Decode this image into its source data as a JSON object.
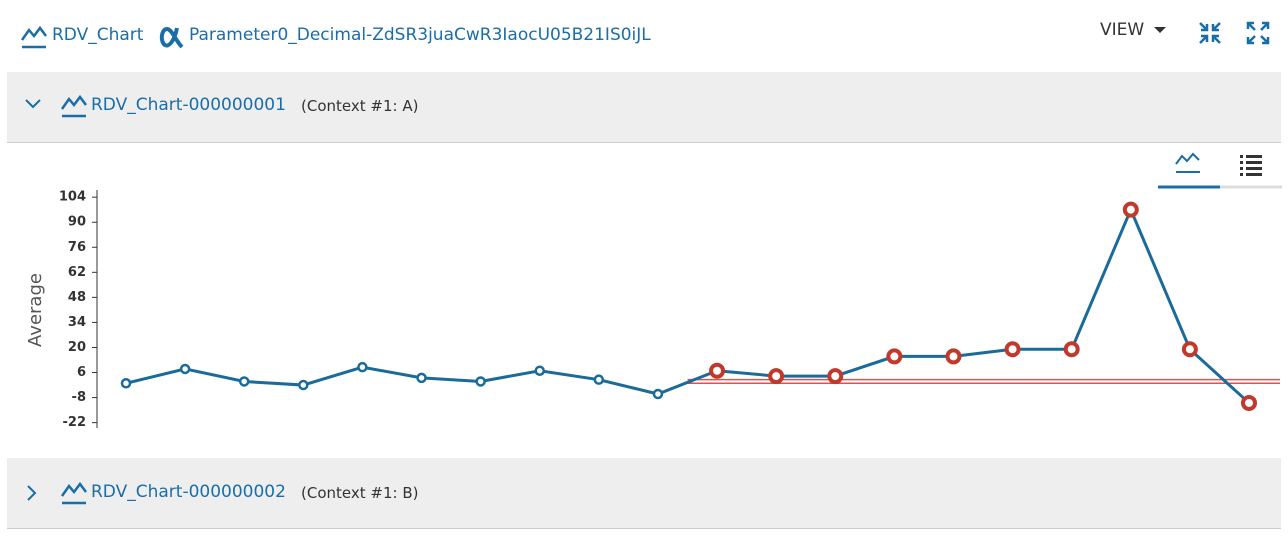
{
  "header": {
    "chart_link": "RDV_Chart",
    "parameter_link": "Parameter0_Decimal-ZdSR3juaCwR3IaocU05B21IS0iJL",
    "view_menu": "VIEW"
  },
  "panels": [
    {
      "title": "RDV_Chart-000000001",
      "context": "(Context #1: A)",
      "expanded": true
    },
    {
      "title": "RDV_Chart-000000002",
      "context": "(Context #1: B)",
      "expanded": false
    }
  ],
  "chart_data": {
    "type": "line",
    "y_label": "Average",
    "categories": [
      null,
      null,
      null,
      null,
      null,
      null,
      null,
      null,
      null,
      null,
      null,
      null,
      null,
      null,
      null,
      null,
      null,
      null,
      null,
      null
    ],
    "series": [
      {
        "color": "#1a6a9a",
        "flag_color": "#c0392b",
        "values": [
          0,
          8,
          1,
          -1,
          9,
          3,
          1,
          7,
          2,
          -6,
          7,
          4,
          4,
          15,
          15,
          19,
          19,
          97,
          19,
          -11
        ],
        "flagged": [
          false,
          false,
          false,
          false,
          false,
          false,
          false,
          false,
          false,
          false,
          true,
          true,
          true,
          true,
          true,
          true,
          true,
          true,
          true,
          true
        ]
      }
    ],
    "limit_lines": [
      2,
      0
    ],
    "limit_color": "#d9534f",
    "ylim": [
      -25,
      108
    ],
    "yticks": [
      -22,
      -8,
      6,
      20,
      34,
      48,
      62,
      76,
      90,
      104
    ]
  }
}
